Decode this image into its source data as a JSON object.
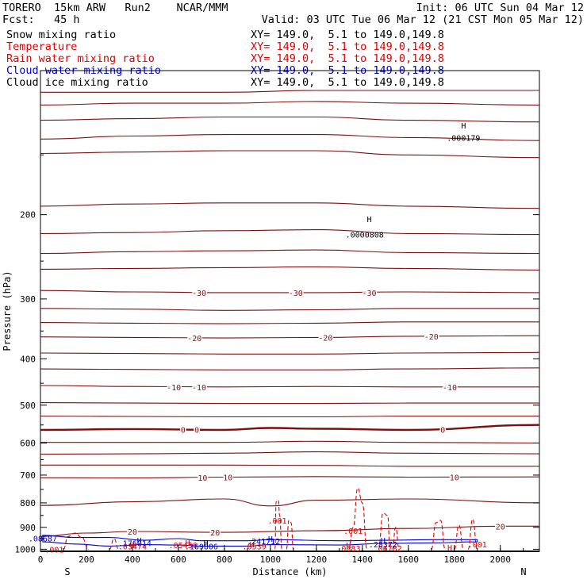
{
  "header": {
    "model": "TORERO  15km ARW   Run2    NCAR/MMM",
    "fcst": "Fcst:   45 h",
    "init": "Init: 06 UTC Sun 04 Mar 12",
    "valid": "Valid: 03 UTC Tue 06 Mar 12 (21 CST Mon 05 Mar 12)"
  },
  "legend": [
    {
      "field": "Snow mixing ratio",
      "xy": "XY= 149.0,  5.1 to 149.0,149.8",
      "color": "#000000"
    },
    {
      "field": "Temperature",
      "xy": "XY= 149.0,  5.1 to 149.0,149.8",
      "color": "#e00000"
    },
    {
      "field": "Rain water mixing ratio",
      "xy": "XY= 149.0,  5.1 to 149.0,149.8",
      "color": "#e00000"
    },
    {
      "field": "Cloud water mixing ratio",
      "xy": "XY= 149.0,  5.1 to 149.0,149.8",
      "color": "#0000cc"
    },
    {
      "field": "Cloud ice mixing ratio",
      "xy": "XY= 149.0,  5.1 to 149.0,149.8",
      "color": "#000000"
    }
  ],
  "chart_data": {
    "type": "line",
    "xlabel": "Distance (km)",
    "ylabel": "Pressure (hPa)",
    "xlim": [
      0,
      2170
    ],
    "ylim": [
      1010,
      100
    ],
    "y_scale": "log",
    "x_ticks": [
      0,
      200,
      400,
      600,
      800,
      1000,
      1200,
      1400,
      1600,
      1800,
      2000
    ],
    "y_ticks": [
      200,
      300,
      400,
      500,
      600,
      700,
      800,
      900,
      1000
    ],
    "x_end_labels": {
      "left": "S",
      "right": "N"
    },
    "temperature_contours": [
      {
        "level": -50,
        "x": [
          0,
          400,
          800,
          1200,
          1600,
          2170
        ],
        "p": [
          111,
          111,
          111,
          110,
          110,
          110
        ]
      },
      {
        "level": -48,
        "x": [
          0,
          400,
          800,
          1200,
          1600,
          2170
        ],
        "p": [
          118,
          117,
          117,
          116,
          117,
          118
        ]
      },
      {
        "level": -46,
        "x": [
          0,
          400,
          800,
          1200,
          1600,
          2170
        ],
        "p": [
          127,
          126,
          125,
          125,
          127,
          128
        ]
      },
      {
        "level": -44,
        "x": [
          0,
          400,
          800,
          1200,
          1600,
          2170
        ],
        "p": [
          139,
          137,
          136,
          136,
          138,
          140
        ]
      },
      {
        "level": -42,
        "x": [
          0,
          400,
          800,
          1200,
          1600,
          2170
        ],
        "p": [
          149,
          148,
          147,
          147,
          150,
          152
        ]
      },
      {
        "level": -40,
        "x": [
          0,
          400,
          800,
          1200,
          1600,
          2170
        ],
        "p": [
          192,
          190,
          189,
          189,
          192,
          194
        ]
      },
      {
        "level": -38,
        "x": [
          0,
          400,
          800,
          1200,
          1600,
          2170
        ],
        "p": [
          219,
          218,
          216,
          215,
          219,
          220
        ]
      },
      {
        "level": -36,
        "x": [
          0,
          400,
          800,
          1200,
          1600,
          2170
        ],
        "p": [
          241,
          239,
          238,
          237,
          240,
          241
        ]
      },
      {
        "level": -34,
        "x": [
          0,
          400,
          800,
          1200,
          1600,
          2170
        ],
        "p": [
          260,
          259,
          258,
          257,
          259,
          261
        ]
      },
      {
        "level": -30,
        "x": [
          0,
          400,
          800,
          1200,
          1600,
          2170
        ],
        "p": [
          288,
          290,
          291,
          291,
          290,
          291
        ]
      },
      {
        "level": -26,
        "x": [
          0,
          400,
          800,
          1200,
          1600,
          2170
        ],
        "p": [
          314,
          315,
          317,
          316,
          314,
          314
        ]
      },
      {
        "level": -24,
        "x": [
          0,
          400,
          800,
          1200,
          1600,
          2170
        ],
        "p": [
          336,
          337,
          338,
          337,
          335,
          335
        ]
      },
      {
        "level": -20,
        "x": [
          0,
          400,
          800,
          1200,
          1600,
          2170
        ],
        "p": [
          360,
          361,
          362,
          361,
          359,
          358
        ]
      },
      {
        "level": -16,
        "x": [
          0,
          400,
          800,
          1200,
          1600,
          2170
        ],
        "p": [
          389,
          390,
          391,
          391,
          389,
          388
        ]
      },
      {
        "level": -12,
        "x": [
          0,
          400,
          800,
          1200,
          1600,
          2170
        ],
        "p": [
          420,
          421,
          422,
          422,
          420,
          418
        ]
      },
      {
        "level": -10,
        "x": [
          0,
          400,
          800,
          1200,
          1600,
          2170
        ],
        "p": [
          455,
          457,
          458,
          457,
          458,
          458
        ]
      },
      {
        "level": -6,
        "x": [
          0,
          400,
          800,
          1200,
          1600,
          2170
        ],
        "p": [
          494,
          495,
          496,
          496,
          495,
          495
        ]
      },
      {
        "level": -2,
        "x": [
          0,
          400,
          800,
          1200,
          1600,
          2170
        ],
        "p": [
          527,
          528,
          529,
          529,
          527,
          527
        ]
      },
      {
        "level": 0,
        "x": [
          0,
          400,
          800,
          1000,
          1200,
          1600,
          2170
        ],
        "p": [
          563,
          561,
          563,
          558,
          560,
          563,
          550
        ]
      },
      {
        "level": 2,
        "x": [
          0,
          400,
          800,
          1200,
          1600,
          2170
        ],
        "p": [
          598,
          598,
          598,
          595,
          598,
          600
        ]
      },
      {
        "level": 4,
        "x": [
          0,
          400,
          800,
          1200,
          1600,
          2170
        ],
        "p": [
          633,
          632,
          630,
          626,
          630,
          632
        ]
      },
      {
        "level": 6,
        "x": [
          0,
          400,
          800,
          1200,
          1600,
          2170
        ],
        "p": [
          667,
          667,
          667,
          668,
          671,
          671
        ]
      },
      {
        "level": 10,
        "x": [
          0,
          400,
          800,
          1200,
          1600,
          2170
        ],
        "p": [
          709,
          710,
          707,
          705,
          707,
          706
        ]
      },
      {
        "level": 14,
        "x": [
          0,
          400,
          800,
          1000,
          1200,
          1600,
          2170
        ],
        "p": [
          810,
          796,
          785,
          812,
          790,
          785,
          800
        ]
      },
      {
        "level": 20,
        "x": [
          0,
          200,
          400,
          800,
          1200,
          1600,
          2000,
          2170
        ],
        "p": [
          940,
          925,
          918,
          922,
          915,
          905,
          895,
          895
        ]
      }
    ],
    "temperature_labels": [
      {
        "text": "-30",
        "x": 690,
        "p": 291
      },
      {
        "text": "-30",
        "x": 1110,
        "p": 291
      },
      {
        "text": "-30",
        "x": 1430,
        "p": 291
      },
      {
        "text": "-20",
        "x": 670,
        "p": 362
      },
      {
        "text": "-20",
        "x": 1240,
        "p": 361
      },
      {
        "text": "-20",
        "x": 1700,
        "p": 359
      },
      {
        "text": "-10",
        "x": 580,
        "p": 458
      },
      {
        "text": "-10",
        "x": 690,
        "p": 458
      },
      {
        "text": "-10",
        "x": 1780,
        "p": 458
      },
      {
        "text": "0",
        "x": 620,
        "p": 562
      },
      {
        "text": "0",
        "x": 680,
        "p": 562
      },
      {
        "text": "0",
        "x": 1750,
        "p": 562
      },
      {
        "text": "10",
        "x": 705,
        "p": 708
      },
      {
        "text": "10",
        "x": 815,
        "p": 707
      },
      {
        "text": "10",
        "x": 1800,
        "p": 707
      },
      {
        "text": "20",
        "x": 400,
        "p": 918
      },
      {
        "text": "20",
        "x": 760,
        "p": 922
      },
      {
        "text": "20",
        "x": 2000,
        "p": 895
      }
    ],
    "rain_contours": [
      {
        "x": [
          1020,
          1025,
          1035,
          1040,
          1050
        ],
        "p": [
          1000,
          795,
          790,
          850,
          1000
        ]
      },
      {
        "x": [
          1070,
          1080,
          1090,
          1100
        ],
        "p": [
          1000,
          870,
          880,
          1000
        ]
      },
      {
        "x": [
          1340,
          1360,
          1380,
          1400,
          1420
        ],
        "p": [
          1000,
          900,
          745,
          800,
          1000
        ]
      },
      {
        "x": [
          1470,
          1490,
          1510,
          1520
        ],
        "p": [
          1000,
          840,
          850,
          1000
        ]
      },
      {
        "x": [
          1530,
          1545,
          1560
        ],
        "p": [
          1000,
          900,
          1000
        ]
      },
      {
        "x": [
          1700,
          1720,
          1740,
          1760
        ],
        "p": [
          1000,
          880,
          870,
          1000
        ]
      },
      {
        "x": [
          1800,
          1820,
          1840
        ],
        "p": [
          1000,
          890,
          1000
        ]
      },
      {
        "x": [
          1860,
          1880,
          1900
        ],
        "p": [
          1000,
          865,
          1000
        ]
      },
      {
        "x": [
          100,
          120,
          150,
          180,
          210
        ],
        "p": [
          1000,
          940,
          925,
          945,
          1000
        ]
      },
      {
        "x": [
          300,
          320,
          340
        ],
        "p": [
          1000,
          950,
          1000
        ]
      }
    ],
    "rain_labels": [
      {
        "text": ".001",
        "x": 1030,
        "p": 870
      },
      {
        "text": ".001",
        "x": 1360,
        "p": 915
      },
      {
        "text": ".001",
        "x": 60,
        "p": 1000
      },
      {
        "text": ".001",
        "x": 1900,
        "p": 975
      },
      {
        "text": ".05456",
        "x": 620,
        "p": 980
      },
      {
        "text": ".03474",
        "x": 400,
        "p": 985
      },
      {
        "text": ".0539",
        "x": 930,
        "p": 985
      },
      {
        "text": ".0683",
        "x": 1340,
        "p": 995
      },
      {
        "text": ".06782",
        "x": 1510,
        "p": 995
      }
    ],
    "cloud_water_contours": [
      {
        "x": [
          10,
          150,
          300,
          450,
          600,
          700,
          900,
          1000,
          1300,
          1500,
          1700,
          1900,
          1900,
          1700,
          1500,
          1300,
          1000,
          900,
          700,
          600,
          450,
          300,
          150,
          10
        ],
        "p": [
          935,
          945,
          945,
          958,
          950,
          960,
          960,
          955,
          960,
          958,
          955,
          955,
          965,
          970,
          972,
          980,
          978,
          985,
          985,
          980,
          978,
          985,
          975,
          965
        ]
      }
    ],
    "cloud_water_labels": [
      {
        "text": ".08687",
        "x": 10,
        "p": 948
      },
      {
        "text": ".176014",
        "x": 410,
        "p": 970
      },
      {
        "text": ".169806",
        "x": 700,
        "p": 985
      },
      {
        "text": ".241712",
        "x": 970,
        "p": 962
      },
      {
        "text": ".28372",
        "x": 1490,
        "p": 975
      }
    ],
    "maxima_marks": [
      {
        "text": "H",
        "x": 1840,
        "p": 130,
        "color": "#000000"
      },
      {
        "text": ".000179",
        "x": 1840,
        "p": 138,
        "color": "#000000"
      },
      {
        "text": "H",
        "x": 1430,
        "p": 204,
        "color": "#000000"
      },
      {
        "text": ".0000808",
        "x": 1410,
        "p": 220,
        "color": "#000000"
      },
      {
        "text": "H",
        "x": 430,
        "p": 958,
        "color": "#0000cc"
      },
      {
        "text": "H",
        "x": 720,
        "p": 968,
        "color": "#000000"
      },
      {
        "text": "H",
        "x": 1000,
        "p": 950,
        "color": "#0000cc"
      },
      {
        "text": "H",
        "x": 1490,
        "p": 958,
        "color": "#0000cc"
      },
      {
        "text": "H",
        "x": 400,
        "p": 978,
        "color": "#e00000"
      },
      {
        "text": "H",
        "x": 640,
        "p": 968,
        "color": "#e00000"
      },
      {
        "text": "H",
        "x": 1340,
        "p": 980,
        "color": "#e00000"
      },
      {
        "text": "H",
        "x": 1780,
        "p": 990,
        "color": "#e00000"
      },
      {
        "text": "H",
        "x": 920,
        "p": 975,
        "color": "#e00000"
      }
    ],
    "surface_pressure": {
      "x": [
        0,
        2170
      ],
      "p": [
        1010,
        1010
      ]
    }
  }
}
